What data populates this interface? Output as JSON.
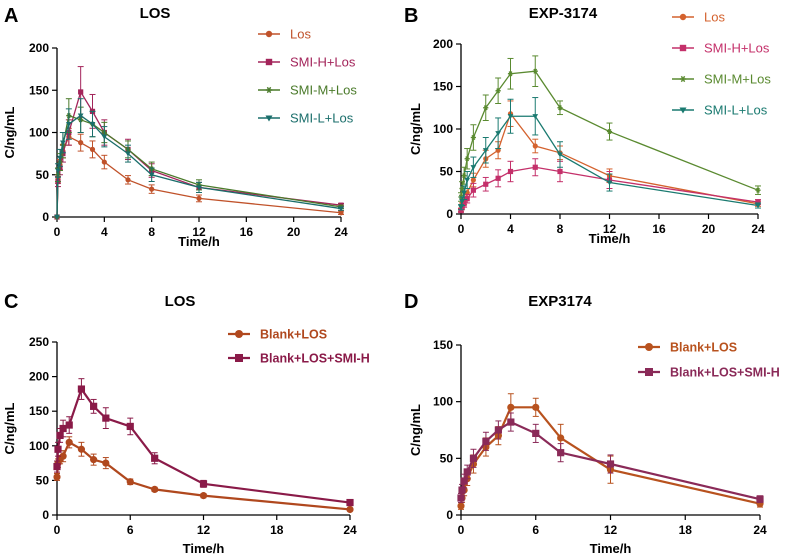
{
  "chart_data": [
    {
      "type": "line",
      "panel_label": "A",
      "title": "LOS",
      "xlabel": "Time/h",
      "ylabel": "C/ng/mL",
      "xlim": [
        0,
        24
      ],
      "ylim": [
        0,
        200
      ],
      "xticks": [
        "0",
        "4",
        "8",
        "12",
        "16",
        "20",
        "24"
      ],
      "yticks": [
        "0",
        "50",
        "100",
        "150",
        "200"
      ],
      "legend_position": "top-right",
      "series": [
        {
          "name": "Los",
          "color": "#c0522a",
          "marker": "circle",
          "x": [
            0,
            0.083,
            0.25,
            0.5,
            1,
            2,
            3,
            4,
            6,
            8,
            12,
            24
          ],
          "y": [
            0,
            45,
            62,
            78,
            95,
            88,
            80,
            65,
            44,
            33,
            22,
            5
          ],
          "err": [
            0,
            5,
            6,
            8,
            10,
            10,
            10,
            8,
            5,
            5,
            4,
            2
          ]
        },
        {
          "name": "SMI-H+Los",
          "color": "#a3245a",
          "marker": "square",
          "x": [
            0,
            0.083,
            0.25,
            0.5,
            1,
            2,
            3,
            4,
            6,
            8,
            12,
            24
          ],
          "y": [
            0,
            42,
            58,
            75,
            100,
            148,
            125,
            100,
            80,
            55,
            35,
            14
          ],
          "err": [
            0,
            6,
            8,
            10,
            15,
            30,
            20,
            15,
            12,
            8,
            6,
            2
          ]
        },
        {
          "name": "SMI-M+Los",
          "color": "#4a7a2a",
          "marker": "star",
          "x": [
            0,
            0.083,
            0.25,
            0.5,
            1,
            2,
            3,
            4,
            6,
            8,
            12,
            24
          ],
          "y": [
            0,
            50,
            65,
            85,
            120,
            115,
            110,
            100,
            80,
            57,
            38,
            12
          ],
          "err": [
            0,
            8,
            10,
            15,
            20,
            15,
            15,
            12,
            10,
            8,
            6,
            2
          ]
        },
        {
          "name": "SMI-L+Los",
          "color": "#1a6e6b",
          "marker": "triangle-down",
          "x": [
            0,
            0.083,
            0.25,
            0.5,
            1,
            2,
            3,
            4,
            6,
            8,
            12,
            24
          ],
          "y": [
            0,
            55,
            70,
            88,
            110,
            120,
            110,
            95,
            75,
            50,
            35,
            10
          ],
          "err": [
            0,
            8,
            10,
            12,
            18,
            20,
            15,
            12,
            10,
            8,
            6,
            2
          ]
        }
      ]
    },
    {
      "type": "line",
      "panel_label": "B",
      "title": "EXP-3174",
      "xlabel": "Time/h",
      "ylabel": "C/ng/mL",
      "xlim": [
        0,
        24
      ],
      "ylim": [
        0,
        200
      ],
      "xticks": [
        "0",
        "4",
        "8",
        "12",
        "16",
        "20",
        "24"
      ],
      "yticks": [
        "0",
        "50",
        "100",
        "150",
        "200"
      ],
      "legend_position": "top-right",
      "series": [
        {
          "name": "Los",
          "color": "#d4622e",
          "marker": "circle",
          "x": [
            0,
            0.083,
            0.25,
            0.5,
            1,
            2,
            3,
            4,
            6,
            8,
            12,
            24
          ],
          "y": [
            5,
            10,
            15,
            25,
            40,
            65,
            75,
            118,
            80,
            72,
            45,
            12
          ],
          "err": [
            2,
            3,
            4,
            5,
            8,
            10,
            10,
            15,
            8,
            8,
            8,
            3
          ]
        },
        {
          "name": "SMI-H+Los",
          "color": "#c4306a",
          "marker": "square",
          "x": [
            0,
            0.083,
            0.25,
            0.5,
            1,
            2,
            3,
            4,
            6,
            8,
            12,
            24
          ],
          "y": [
            4,
            8,
            12,
            18,
            28,
            35,
            42,
            50,
            55,
            50,
            40,
            14
          ],
          "err": [
            2,
            3,
            4,
            5,
            8,
            8,
            10,
            12,
            10,
            12,
            10,
            3
          ]
        },
        {
          "name": "SMI-M+Los",
          "color": "#5a8a30",
          "marker": "star",
          "x": [
            0,
            0.083,
            0.25,
            0.5,
            1,
            2,
            3,
            4,
            6,
            8,
            12,
            24
          ],
          "y": [
            20,
            30,
            45,
            65,
            90,
            125,
            145,
            165,
            168,
            125,
            97,
            28
          ],
          "err": [
            5,
            8,
            10,
            12,
            15,
            15,
            15,
            18,
            18,
            8,
            10,
            5
          ]
        },
        {
          "name": "SMI-L+Los",
          "color": "#1a7a70",
          "marker": "triangle-down",
          "x": [
            0,
            0.083,
            0.25,
            0.5,
            1,
            2,
            3,
            4,
            6,
            8,
            12,
            24
          ],
          "y": [
            8,
            15,
            25,
            40,
            55,
            75,
            95,
            115,
            115,
            70,
            37,
            10
          ],
          "err": [
            3,
            5,
            8,
            10,
            12,
            15,
            18,
            20,
            22,
            15,
            10,
            3
          ]
        }
      ]
    },
    {
      "type": "line",
      "panel_label": "C",
      "title": "LOS",
      "xlabel": "Time/h",
      "ylabel": "C/ng/mL",
      "xlim": [
        0,
        24
      ],
      "ylim": [
        0,
        250
      ],
      "xticks": [
        "0",
        "6",
        "12",
        "18",
        "24"
      ],
      "yticks": [
        "0",
        "50",
        "100",
        "150",
        "200",
        "250"
      ],
      "legend_position": "top-right",
      "series": [
        {
          "name": "Blank+LOS",
          "color": "#b0481e",
          "marker": "circle",
          "x": [
            0,
            0.083,
            0.25,
            0.5,
            1,
            2,
            3,
            4,
            6,
            8,
            12,
            24
          ],
          "y": [
            55,
            75,
            80,
            85,
            105,
            95,
            80,
            75,
            48,
            37,
            28,
            8
          ],
          "err": [
            5,
            6,
            6,
            8,
            8,
            10,
            8,
            8,
            4,
            3,
            3,
            2
          ]
        },
        {
          "name": "Blank+LOS+SMI-H",
          "color": "#8a1a48",
          "marker": "square",
          "x": [
            0,
            0.083,
            0.25,
            0.5,
            1,
            2,
            3,
            4,
            6,
            8,
            12,
            24
          ],
          "y": [
            70,
            95,
            115,
            125,
            130,
            182,
            157,
            140,
            128,
            82,
            45,
            18
          ],
          "err": [
            8,
            10,
            10,
            12,
            12,
            15,
            10,
            15,
            12,
            8,
            5,
            3
          ]
        }
      ]
    },
    {
      "type": "line",
      "panel_label": "D",
      "title": "EXP3174",
      "xlabel": "Time/h",
      "ylabel": "C/ng/mL",
      "xlim": [
        0,
        24
      ],
      "ylim": [
        0,
        150
      ],
      "xticks": [
        "0",
        "6",
        "12",
        "18",
        "24"
      ],
      "yticks": [
        "0",
        "50",
        "100",
        "150"
      ],
      "legend_position": "top-right",
      "series": [
        {
          "name": "Blank+LOS",
          "color": "#b8521e",
          "marker": "circle",
          "x": [
            0,
            0.083,
            0.25,
            0.5,
            1,
            2,
            3,
            4,
            6,
            8,
            12,
            24
          ],
          "y": [
            8,
            15,
            22,
            32,
            45,
            60,
            70,
            95,
            95,
            68,
            40,
            10
          ],
          "err": [
            3,
            4,
            5,
            6,
            8,
            8,
            8,
            12,
            8,
            12,
            12,
            3
          ]
        },
        {
          "name": "Blank+LOS+SMI-H",
          "color": "#8a2a58",
          "marker": "square",
          "x": [
            0,
            0.083,
            0.25,
            0.5,
            1,
            2,
            3,
            4,
            6,
            8,
            12,
            24
          ],
          "y": [
            15,
            22,
            30,
            38,
            50,
            65,
            75,
            82,
            72,
            55,
            45,
            14
          ],
          "err": [
            4,
            5,
            6,
            6,
            8,
            8,
            8,
            8,
            8,
            8,
            8,
            3
          ]
        }
      ]
    }
  ]
}
